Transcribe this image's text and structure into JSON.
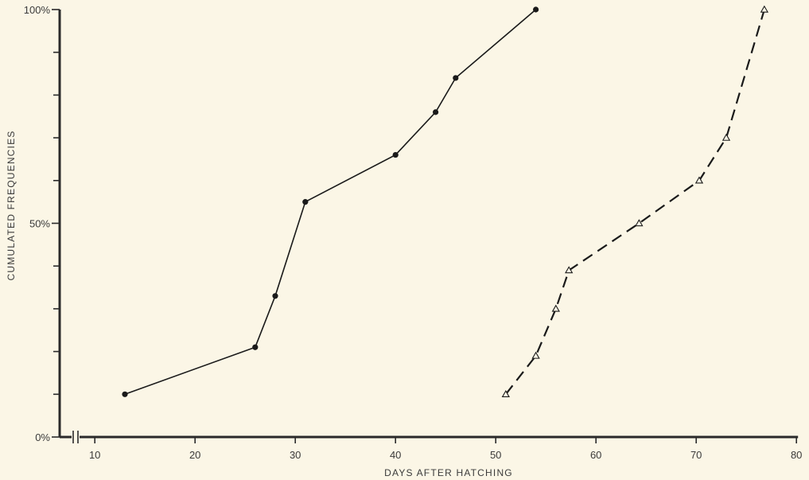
{
  "chart_data": {
    "type": "line",
    "xlabel": "DAYS AFTER HATCHING",
    "ylabel": "CUMULATED FREQUENCIES",
    "xlim": [
      8,
      80
    ],
    "ylim": [
      0,
      100
    ],
    "x_ticks": [
      10,
      20,
      30,
      40,
      50,
      60,
      70,
      80
    ],
    "y_tick_labels": [
      {
        "value": 0,
        "label": "0%"
      },
      {
        "value": 50,
        "label": "50%"
      },
      {
        "value": 100,
        "label": "100%"
      }
    ],
    "y_minor_ticks": [
      10,
      20,
      30,
      40,
      60,
      70,
      80,
      90
    ],
    "x_axis_break": true,
    "grid": false,
    "series": [
      {
        "style": "solid",
        "marker": "filled-circle",
        "color": "#1a1a1a",
        "x": [
          13,
          26,
          28,
          31,
          40,
          44,
          46,
          54
        ],
        "y": [
          10,
          21,
          33,
          55,
          66,
          76,
          84,
          100
        ]
      },
      {
        "style": "dashed",
        "marker": "open-triangle",
        "color": "#1a1a1a",
        "x": [
          51,
          54,
          56,
          57.3,
          64.3,
          70.3,
          73,
          76.8
        ],
        "y": [
          10,
          19,
          30,
          39,
          50,
          60,
          70,
          100
        ]
      }
    ]
  }
}
